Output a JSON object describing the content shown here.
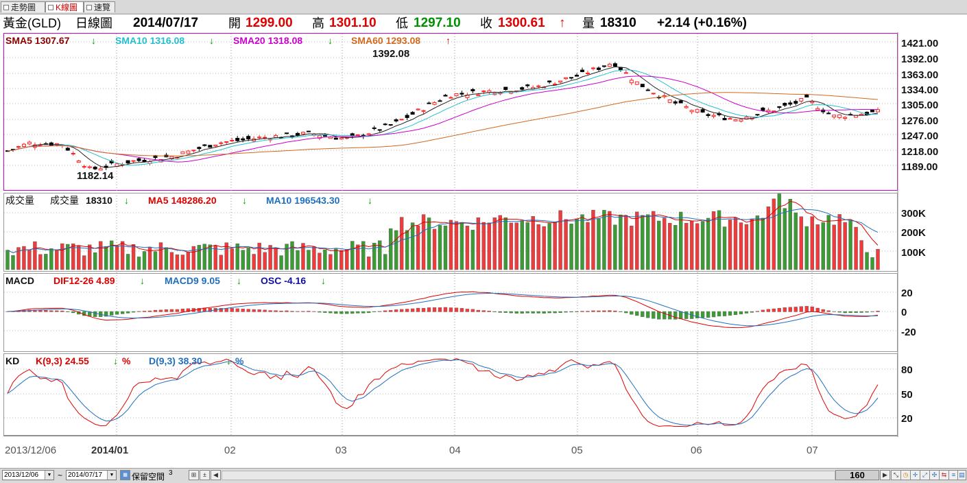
{
  "tabs": [
    {
      "label": "走勢圖"
    },
    {
      "label": "K線圖"
    },
    {
      "label": "速覽"
    }
  ],
  "header": {
    "name": "黃金(GLD)",
    "type": "日線圖",
    "date": "2014/07/17",
    "open_label": "開",
    "open": "1299.00",
    "high_label": "高",
    "high": "1301.10",
    "low_label": "低",
    "low": "1297.10",
    "close_label": "收",
    "close": "1300.61",
    "close_arrow": "↑",
    "vol_label": "量",
    "vol": "18310",
    "change": "+2.14 (+0.16%)"
  },
  "price_panel": {
    "legend": [
      {
        "text": "SMA5 1307.67",
        "arrow": "↓",
        "color": "#8b0000"
      },
      {
        "text": "SMA10 1316.08",
        "arrow": "↓",
        "color": "#22bfcf"
      },
      {
        "text": "SMA20 1318.08",
        "arrow": "↓",
        "color": "#cc00cc"
      },
      {
        "text": "SMA60 1293.08",
        "arrow": "↑",
        "color": "#d2691e"
      }
    ],
    "y_ticks": [
      "1421.00",
      "1392.00",
      "1363.00",
      "1334.00",
      "1305.00",
      "1276.00",
      "1247.00",
      "1218.00",
      "1189.00"
    ],
    "high_label": "1392.08",
    "low_label": "1182.14"
  },
  "volume_panel": {
    "title": "成交量",
    "vol_label": "成交量",
    "vol_value": "18310",
    "vol_arrow": "↓",
    "ma5": "MA5 148286.20",
    "ma5_arrow": "↓",
    "ma10": "MA10 196543.30",
    "ma10_arrow": "↓",
    "y_ticks": [
      "300K",
      "200K",
      "100K"
    ]
  },
  "macd_panel": {
    "title": "MACD",
    "dif": "DIF12-26 4.89",
    "dif_arrow": "↓",
    "macd": "MACD9 9.05",
    "macd_arrow": "↓",
    "osc": "OSC -4.16",
    "osc_arrow": "↓",
    "y_ticks": [
      "20",
      "0",
      "-20"
    ]
  },
  "kd_panel": {
    "title": "KD",
    "k": "K(9,3) 24.55",
    "k_arrow": "↓",
    "k_pct": "%",
    "d": "D(9,3) 38.30",
    "d_arrow": "↓",
    "d_pct": "%",
    "y_ticks": [
      "80",
      "50",
      "20"
    ]
  },
  "x_axis": {
    "labels": [
      "2013/12/06",
      "2014/01",
      "02",
      "03",
      "04",
      "05",
      "06",
      "07"
    ]
  },
  "footer": {
    "start": "2013/12/06",
    "tilde": "~",
    "end": "2014/07/17",
    "reserve_label": "保留空間",
    "reserve_value": "3",
    "count": "160"
  },
  "colors": {
    "up": "#ff2020",
    "down": "#000000",
    "vol_up": "#ee3b3b",
    "vol_down": "#3d9b35",
    "frame_price": "#cc00cc",
    "axis": "#888888"
  }
}
